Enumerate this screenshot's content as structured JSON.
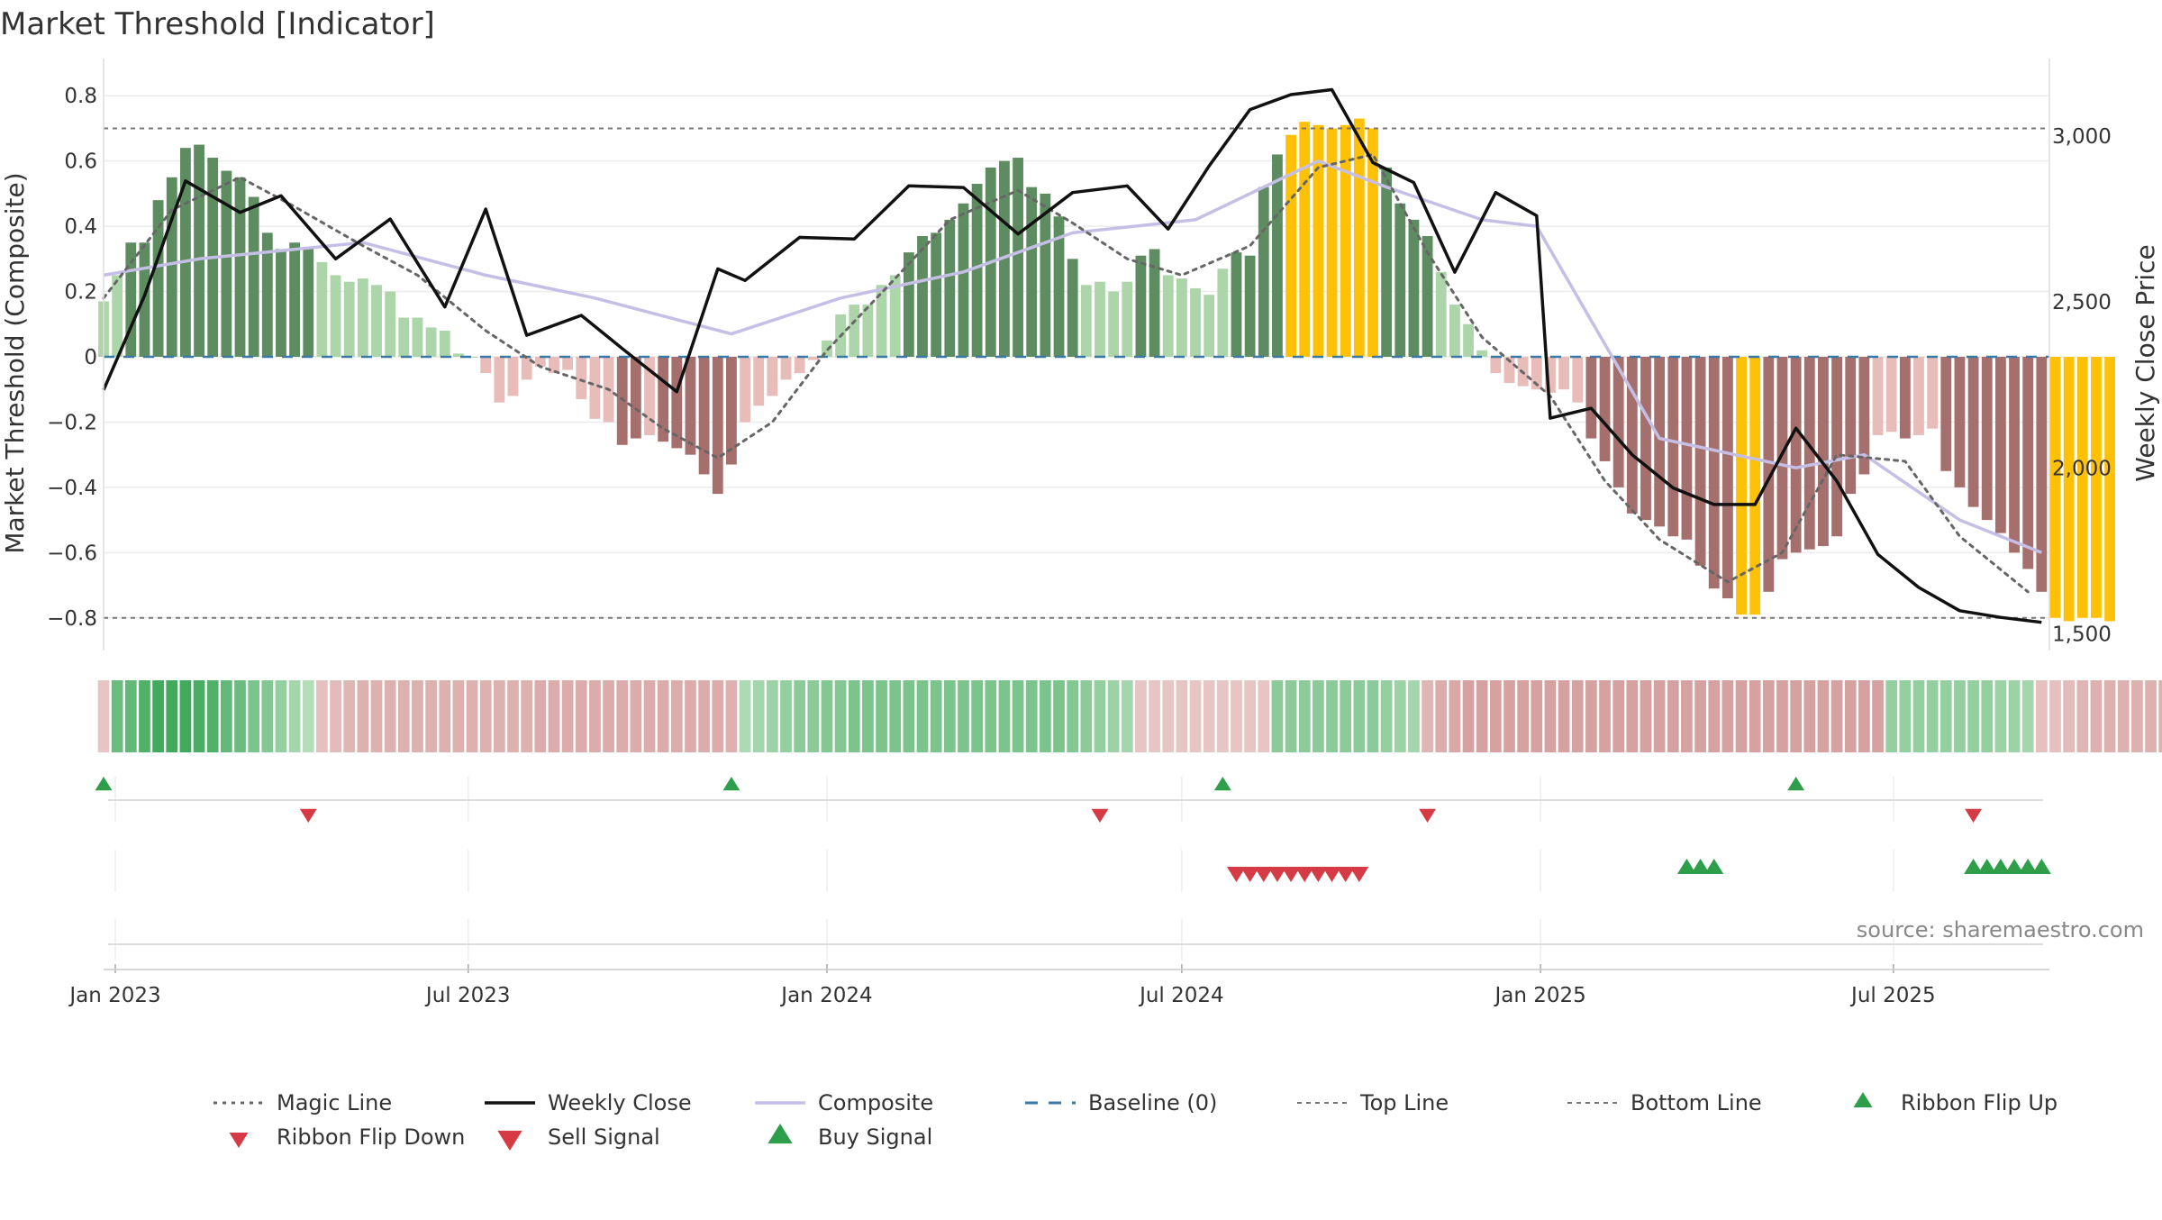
{
  "chart_data": {
    "type": "bar",
    "title": "Market Threshold [Indicator]",
    "source": "source: sharemaestro.com",
    "x_ticks": [
      "Jan 2023",
      "Jul 2023",
      "Jan 2024",
      "Jul 2024",
      "Jan 2025",
      "Jul 2025"
    ],
    "x_range": [
      "2022-12-26",
      "2025-09-19"
    ],
    "left_axis": {
      "label": "Market Threshold (Composite)",
      "ylim": [
        -0.9,
        0.9
      ],
      "ticks": [
        0.8,
        0.6,
        0.4,
        0.2,
        0,
        -0.2,
        -0.4,
        -0.6,
        -0.8
      ],
      "tick_labels": [
        "0.8",
        "0.6",
        "0.4",
        "0.2",
        "0",
        "−0.2",
        "−0.4",
        "−0.6",
        "−0.8"
      ]
    },
    "right_axis": {
      "label": "Weekly Close Price",
      "ylim": [
        1450,
        3220
      ],
      "ticks": [
        1500,
        2000,
        2500,
        3000
      ],
      "tick_labels": [
        "1,500",
        "2,000",
        "2,500",
        "3,000"
      ]
    },
    "top_line": 0.7,
    "bottom_line": -0.8,
    "baseline": 0,
    "grid": true,
    "legend_position": "bottom",
    "colors": {
      "strong_pos": "#5e8c61",
      "weak_pos": "#acd5aa",
      "strong_neg": "#a46f6c",
      "weak_neg": "#e8bcb8",
      "extreme": "#ffc107",
      "weekly_close": "#111111",
      "composite": "#c5bfe6",
      "magic_line": "#666666",
      "baseline": "#3a78a5",
      "threshold": "#777777",
      "buy": "#2e9e4a",
      "sell": "#d63a44"
    },
    "series": [
      {
        "name": "Magic Line",
        "x": [
          "2022-12-26",
          "2023-01-30",
          "2023-03-06",
          "2023-04-03",
          "2023-05-08",
          "2023-06-05",
          "2023-07-10",
          "2023-08-07",
          "2023-09-11",
          "2023-10-09",
          "2023-11-06",
          "2023-12-04",
          "2024-01-01",
          "2024-02-05",
          "2024-03-04",
          "2024-04-08",
          "2024-05-06",
          "2024-06-03",
          "2024-07-01",
          "2024-08-05",
          "2024-09-09",
          "2024-10-07",
          "2024-11-04",
          "2024-12-02",
          "2025-01-06",
          "2025-02-03",
          "2025-03-03",
          "2025-04-07",
          "2025-05-05",
          "2025-06-02",
          "2025-07-07",
          "2025-08-04",
          "2025-09-08"
        ],
        "values": [
          0.18,
          0.45,
          0.55,
          0.46,
          0.34,
          0.25,
          0.08,
          -0.03,
          -0.1,
          -0.22,
          -0.31,
          -0.2,
          0.02,
          0.24,
          0.42,
          0.51,
          0.41,
          0.3,
          0.25,
          0.34,
          0.58,
          0.62,
          0.32,
          0.06,
          -0.12,
          -0.38,
          -0.56,
          -0.69,
          -0.6,
          -0.3,
          -0.32,
          -0.55,
          -0.72
        ]
      },
      {
        "name": "Weekly Close",
        "axis": "right",
        "x": [
          "2022-12-26",
          "2023-01-16",
          "2023-02-06",
          "2023-03-06",
          "2023-03-27",
          "2023-04-24",
          "2023-05-22",
          "2023-06-19",
          "2023-07-10",
          "2023-07-31",
          "2023-08-28",
          "2023-09-18",
          "2023-10-16",
          "2023-11-06",
          "2023-11-20",
          "2023-12-18",
          "2024-01-15",
          "2024-02-12",
          "2024-03-11",
          "2024-04-08",
          "2024-05-06",
          "2024-06-03",
          "2024-06-24",
          "2024-07-15",
          "2024-08-05",
          "2024-08-26",
          "2024-09-16",
          "2024-10-07",
          "2024-10-28",
          "2024-11-18",
          "2024-12-09",
          "2024-12-30",
          "2025-01-06",
          "2025-01-27",
          "2025-02-17",
          "2025-03-10",
          "2025-03-31",
          "2025-04-21",
          "2025-05-12",
          "2025-06-02",
          "2025-06-23",
          "2025-07-14",
          "2025-08-04",
          "2025-08-25",
          "2025-09-15"
        ],
        "values": [
          2235,
          2520,
          2865,
          2770,
          2820,
          2630,
          2750,
          2485,
          2780,
          2400,
          2460,
          2360,
          2230,
          2600,
          2565,
          2695,
          2690,
          2850,
          2845,
          2705,
          2830,
          2850,
          2720,
          2910,
          3080,
          3125,
          3140,
          2920,
          2860,
          2590,
          2830,
          2760,
          2150,
          2180,
          2040,
          1940,
          1890,
          1890,
          2120,
          1960,
          1740,
          1640,
          1570,
          1550,
          1535
        ]
      },
      {
        "name": "Composite",
        "x": [
          "2022-12-26",
          "2023-02-13",
          "2023-05-08",
          "2023-07-10",
          "2023-09-04",
          "2023-11-13",
          "2024-01-08",
          "2024-03-11",
          "2024-05-06",
          "2024-07-08",
          "2024-09-09",
          "2024-10-14",
          "2024-12-02",
          "2024-12-30",
          "2025-03-03",
          "2025-05-12",
          "2025-06-16",
          "2025-08-04",
          "2025-09-15"
        ],
        "values": [
          0.25,
          0.3,
          0.35,
          0.25,
          0.18,
          0.07,
          0.18,
          0.26,
          0.38,
          0.42,
          0.6,
          0.52,
          0.42,
          0.4,
          -0.25,
          -0.34,
          -0.3,
          -0.5,
          -0.6
        ]
      },
      {
        "name": "Baseline (0)",
        "value": 0
      },
      {
        "name": "Top Line",
        "value": 0.7
      },
      {
        "name": "Bottom Line",
        "value": -0.8
      },
      {
        "name": "Ribbon Flip Up",
        "x": [
          "2022-12-26",
          "2023-11-13",
          "2024-07-22",
          "2025-05-12"
        ]
      },
      {
        "name": "Ribbon Flip Down",
        "x": [
          "2023-04-10",
          "2024-05-20",
          "2024-11-04",
          "2025-08-11"
        ]
      },
      {
        "name": "Sell Signal",
        "x": [
          "2024-07-29",
          "2024-08-05",
          "2024-08-12",
          "2024-08-19",
          "2024-08-26",
          "2024-09-02",
          "2024-09-09",
          "2024-09-16",
          "2024-09-23",
          "2024-09-30"
        ]
      },
      {
        "name": "Buy Signal",
        "x": [
          "2025-03-17",
          "2025-03-24",
          "2025-03-31",
          "2025-08-11",
          "2025-08-18",
          "2025-08-25",
          "2025-09-01",
          "2025-09-08",
          "2025-09-15"
        ]
      }
    ],
    "bars": {
      "start": "2022-12-26",
      "interval_days": 7,
      "values": [
        0.17,
        0.25,
        0.35,
        0.35,
        0.48,
        0.55,
        0.64,
        0.65,
        0.61,
        0.57,
        0.55,
        0.49,
        0.38,
        0.33,
        0.35,
        0.33,
        0.29,
        0.25,
        0.23,
        0.24,
        0.22,
        0.2,
        0.12,
        0.12,
        0.09,
        0.08,
        0.01,
        0.0,
        -0.05,
        -0.14,
        -0.12,
        -0.07,
        -0.03,
        -0.05,
        -0.04,
        -0.13,
        -0.19,
        -0.2,
        -0.27,
        -0.25,
        -0.24,
        -0.26,
        -0.28,
        -0.3,
        -0.36,
        -0.42,
        -0.33,
        -0.2,
        -0.15,
        -0.12,
        -0.07,
        -0.05,
        -0.01,
        0.05,
        0.13,
        0.16,
        0.16,
        0.22,
        0.25,
        0.32,
        0.37,
        0.38,
        0.42,
        0.47,
        0.53,
        0.58,
        0.6,
        0.61,
        0.52,
        0.5,
        0.43,
        0.3,
        0.22,
        0.23,
        0.2,
        0.23,
        0.31,
        0.33,
        0.25,
        0.24,
        0.21,
        0.19,
        0.27,
        0.32,
        0.31,
        0.52,
        0.62,
        0.68,
        0.72,
        0.71,
        0.7,
        0.71,
        0.73,
        0.7,
        0.58,
        0.47,
        0.42,
        0.37,
        0.26,
        0.16,
        0.1,
        0.02,
        -0.05,
        -0.08,
        -0.09,
        -0.1,
        -0.11,
        -0.1,
        -0.14,
        -0.25,
        -0.32,
        -0.4,
        -0.48,
        -0.5,
        -0.52,
        -0.55,
        -0.56,
        -0.64,
        -0.71,
        -0.74,
        -0.79,
        -0.79,
        -0.72,
        -0.62,
        -0.6,
        -0.59,
        -0.58,
        -0.55,
        -0.42,
        -0.36,
        -0.24,
        -0.23,
        -0.25,
        -0.24,
        -0.22,
        -0.35,
        -0.4,
        -0.46,
        -0.5,
        -0.54,
        -0.6,
        -0.65,
        -0.72,
        -0.8,
        -0.81,
        -0.8,
        -0.8,
        -0.81
      ]
    },
    "ribbon": {
      "start": "2022-12-26",
      "interval_days": 7,
      "values": [
        -0.25,
        0.7,
        0.75,
        0.85,
        0.95,
        0.95,
        0.95,
        0.9,
        0.85,
        0.75,
        0.7,
        0.6,
        0.55,
        0.45,
        0.35,
        0.25,
        -0.3,
        -0.35,
        -0.4,
        -0.45,
        -0.45,
        -0.45,
        -0.45,
        -0.45,
        -0.45,
        -0.45,
        -0.45,
        -0.45,
        -0.45,
        -0.45,
        -0.45,
        -0.45,
        -0.5,
        -0.5,
        -0.5,
        -0.5,
        -0.5,
        -0.5,
        -0.5,
        -0.5,
        -0.5,
        -0.5,
        -0.5,
        -0.5,
        -0.5,
        -0.5,
        -0.45,
        0.3,
        0.35,
        0.4,
        0.45,
        0.5,
        0.5,
        0.55,
        0.55,
        0.6,
        0.6,
        0.6,
        0.6,
        0.6,
        0.6,
        0.6,
        0.6,
        0.6,
        0.6,
        0.6,
        0.6,
        0.6,
        0.6,
        0.6,
        0.6,
        0.55,
        0.5,
        0.45,
        0.4,
        0.35,
        -0.25,
        -0.25,
        -0.25,
        -0.25,
        -0.25,
        -0.25,
        -0.25,
        -0.25,
        -0.25,
        -0.25,
        0.5,
        0.5,
        0.5,
        0.5,
        0.5,
        0.5,
        0.5,
        0.5,
        0.45,
        0.4,
        0.35,
        -0.4,
        -0.5,
        -0.55,
        -0.6,
        -0.6,
        -0.6,
        -0.6,
        -0.6,
        -0.6,
        -0.6,
        -0.6,
        -0.6,
        -0.6,
        -0.6,
        -0.6,
        -0.6,
        -0.6,
        -0.6,
        -0.6,
        -0.6,
        -0.6,
        -0.6,
        -0.6,
        -0.6,
        -0.6,
        -0.6,
        -0.6,
        -0.6,
        -0.6,
        -0.6,
        -0.6,
        -0.6,
        -0.6,
        -0.6,
        0.45,
        0.45,
        0.45,
        0.45,
        0.45,
        0.45,
        0.45,
        0.45,
        0.4,
        0.4,
        0.35,
        -0.3,
        -0.3,
        -0.35,
        -0.4,
        -0.45,
        -0.45,
        -0.45,
        -0.45,
        -0.45,
        -0.45,
        -0.45,
        -0.45
      ]
    }
  }
}
